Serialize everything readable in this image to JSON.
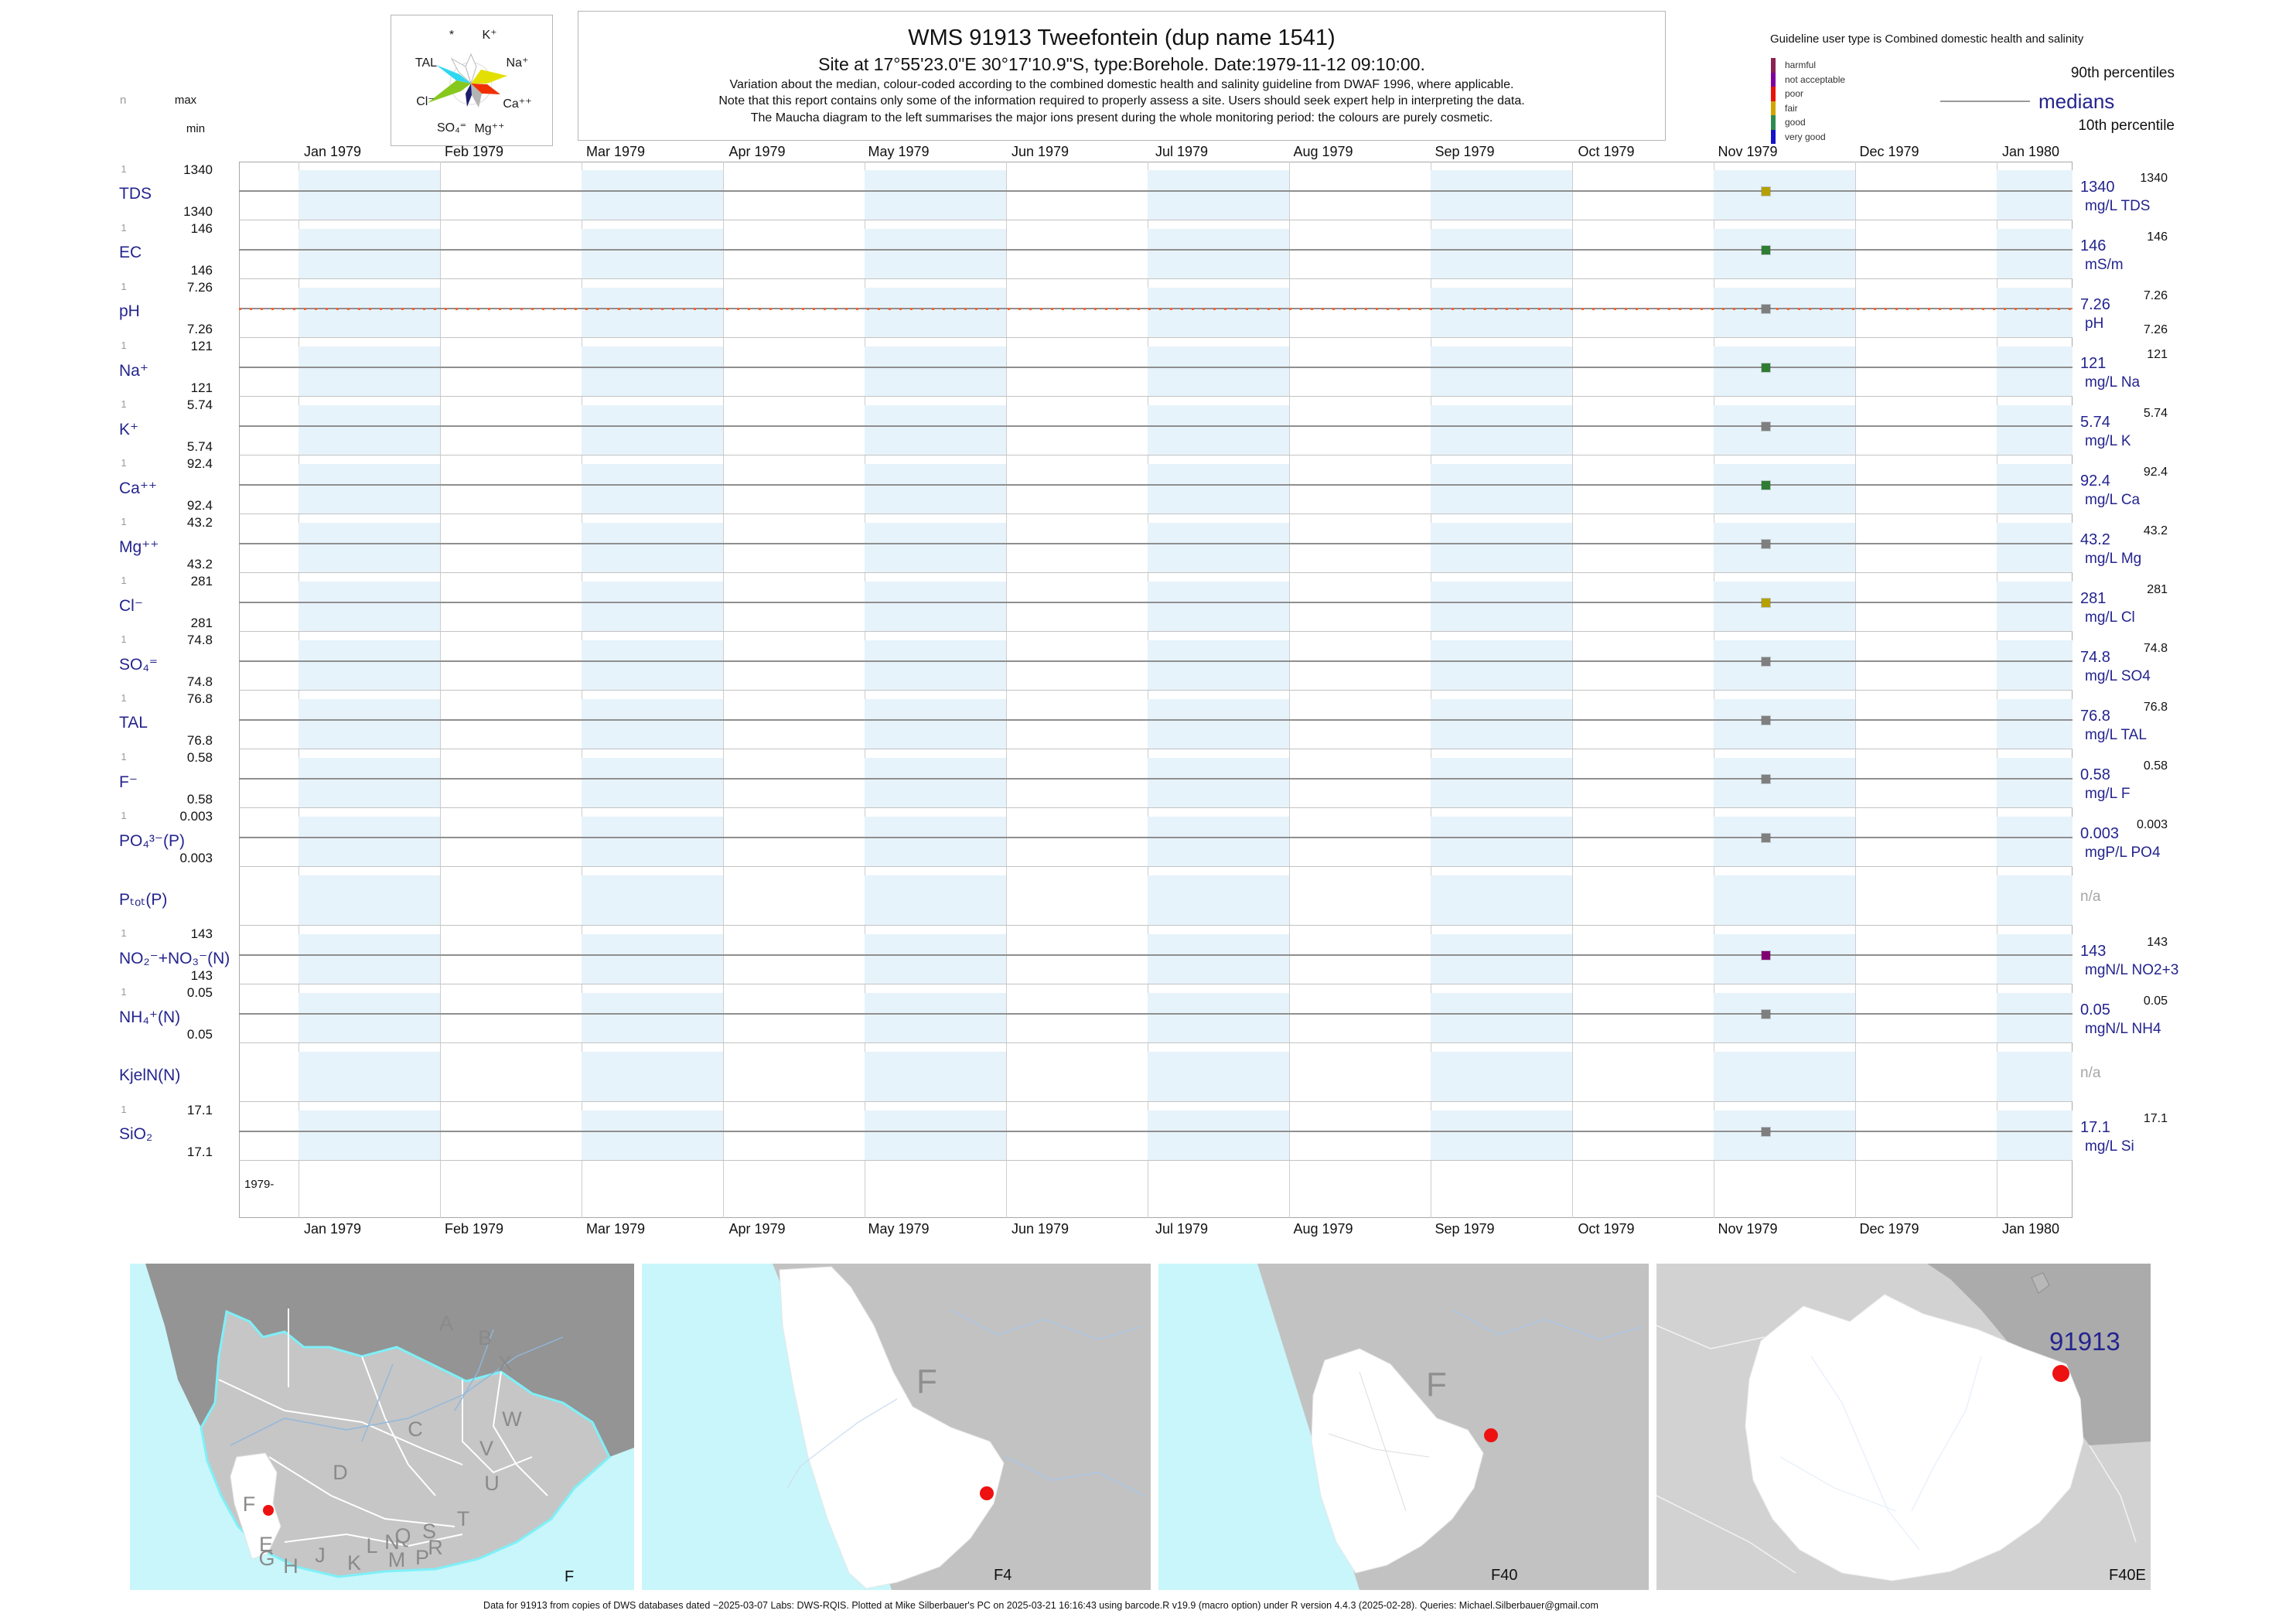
{
  "colors": {
    "accent_navy": "#24248f",
    "cell_blue": "#e7f3fb",
    "grid_gray": "#c3c3c3",
    "median_line_gray": "#8f8f8f",
    "dot_gray": "#7f7f7f",
    "dot_green": "#2e7d32",
    "dot_olive": "#b5a000",
    "dot_purple": "#800070",
    "ph_guideline_orange": "#f86432",
    "map_ocean_cyan": "#c8f6fa",
    "map_land_gray": "#c6c6c6",
    "map_neighbor_gray": "#949494",
    "site_marker_red": "#ee1111"
  },
  "stats_header": {
    "n": "n",
    "max": "max",
    "min": "min"
  },
  "maucha_legend": {
    "labels": [
      "*",
      "K⁺",
      "TAL",
      "Na⁺",
      "Cl⁻",
      "Ca⁺⁺",
      "SO₄⁼",
      "Mg⁺⁺"
    ]
  },
  "title_block": {
    "title": "WMS 91913  Tweefontein (dup name 1541)",
    "subtitle": "Site at 17°55'23.0\"E 30°17'10.9\"S, type:Borehole. Date:1979-11-12 09:10:00.",
    "notes": [
      "Variation about the median,  colour-coded according to the combined domestic health and salinity guideline from DWAF 1996, where applicable.",
      "Note that this report contains only some of the information required to properly assess a site. Users should seek expert help in interpreting the data.",
      "The Maucha diagram to the left summarises the major ions present during the whole monitoring period: the colours are purely cosmetic."
    ]
  },
  "guideline_legend": {
    "title": "Guideline user type is Combined domestic health and salinity",
    "classes": [
      {
        "label": "harmful",
        "color": "#8b2252"
      },
      {
        "label": "not acceptable",
        "color": "#8000a0"
      },
      {
        "label": "poor",
        "color": "#e81309"
      },
      {
        "label": "fair",
        "color": "#d1a500"
      },
      {
        "label": "good",
        "color": "#2e8b50"
      },
      {
        "label": "very good",
        "color": "#1414c8"
      }
    ],
    "p90_label": "90th percentiles",
    "median_label": "medians",
    "p10_label": "10th percentile"
  },
  "chart_data": {
    "type": "scatter",
    "title": "WMS 91913 Tweefontein (dup name 1541)",
    "sample_datetime": "1979-11-12 09:10:00",
    "x_axis": {
      "month_labels": [
        "Jan 1979",
        "Feb 1979",
        "Mar 1979",
        "Apr 1979",
        "May 1979",
        "Jun 1979",
        "Jul 1979",
        "Aug 1979",
        "Sep 1979",
        "Oct 1979",
        "Nov 1979",
        "Dec 1979",
        "Jan 1980"
      ],
      "origin_label": "1979-"
    },
    "rows": [
      {
        "param": "TDS",
        "n": 1,
        "max": 1340,
        "min": 1340,
        "median": 1340,
        "p90": 1340,
        "unit": "mg/L TDS",
        "dot_color": "#b5a000"
      },
      {
        "param": "EC",
        "n": 1,
        "max": 146,
        "min": 146,
        "median": 146,
        "p90": 146,
        "unit": "mS/m",
        "dot_color": "#2e7d32"
      },
      {
        "param": "pH",
        "n": 1,
        "max": 7.26,
        "min": 7.26,
        "median": 7.26,
        "p90": 7.26,
        "p10": 7.26,
        "unit": "pH",
        "dot_color": "#7f7f7f",
        "guideline_line": true
      },
      {
        "param": "Na⁺",
        "n": 1,
        "max": 121,
        "min": 121,
        "median": 121,
        "p90": 121,
        "unit": "mg/L Na",
        "dot_color": "#2e7d32"
      },
      {
        "param": "K⁺",
        "n": 1,
        "max": 5.74,
        "min": 5.74,
        "median": 5.74,
        "p90": 5.74,
        "unit": "mg/L K",
        "dot_color": "#7f7f7f"
      },
      {
        "param": "Ca⁺⁺",
        "n": 1,
        "max": 92.4,
        "min": 92.4,
        "median": 92.4,
        "p90": 92.4,
        "unit": "mg/L Ca",
        "dot_color": "#2e7d32"
      },
      {
        "param": "Mg⁺⁺",
        "n": 1,
        "max": 43.2,
        "min": 43.2,
        "median": 43.2,
        "p90": 43.2,
        "unit": "mg/L Mg",
        "dot_color": "#7f7f7f"
      },
      {
        "param": "Cl⁻",
        "n": 1,
        "max": 281,
        "min": 281,
        "median": 281,
        "p90": 281,
        "unit": "mg/L Cl",
        "dot_color": "#b5a000"
      },
      {
        "param": "SO₄⁼",
        "n": 1,
        "max": 74.8,
        "min": 74.8,
        "median": 74.8,
        "p90": 74.8,
        "unit": "mg/L SO4",
        "dot_color": "#7f7f7f"
      },
      {
        "param": "TAL",
        "n": 1,
        "max": 76.8,
        "min": 76.8,
        "median": 76.8,
        "p90": 76.8,
        "unit": "mg/L TAL",
        "dot_color": "#7f7f7f"
      },
      {
        "param": "F⁻",
        "n": 1,
        "max": 0.58,
        "min": 0.58,
        "median": 0.58,
        "p90": 0.58,
        "unit": "mg/L F",
        "dot_color": "#7f7f7f"
      },
      {
        "param": "PO₄³⁻(P)",
        "n": 1,
        "max": 0.003,
        "min": 0.003,
        "median": 0.003,
        "p90": 0.003,
        "unit": "mgP/L PO4",
        "dot_color": "#7f7f7f"
      },
      {
        "param": "Pₜₒₜ(P)",
        "no_data": "n/a"
      },
      {
        "param": "NO₂⁻+NO₃⁻(N)",
        "n": 1,
        "max": 143,
        "min": 143,
        "median": 143,
        "p90": 143,
        "unit": "mgN/L NO2+3",
        "dot_color": "#800070"
      },
      {
        "param": "NH₄⁺(N)",
        "n": 1,
        "max": 0.05,
        "min": 0.05,
        "median": 0.05,
        "p90": 0.05,
        "unit": "mgN/L NH4",
        "dot_color": "#7f7f7f"
      },
      {
        "param": "KjelN(N)",
        "no_data": "n/a"
      },
      {
        "param": "SiO₂",
        "n": 1,
        "max": 17.1,
        "min": 17.1,
        "median": 17.1,
        "p90": 17.1,
        "unit": "mg/L Si",
        "dot_color": "#7f7f7f"
      }
    ]
  },
  "maps": {
    "panels": [
      {
        "label": "F",
        "region_letters": [
          "A",
          "B",
          "X",
          "C",
          "W",
          "D",
          "V",
          "U",
          "T",
          "E",
          "Q",
          "S",
          "R",
          "L",
          "N",
          "P",
          "M",
          "K",
          "J",
          "H",
          "G",
          "F"
        ]
      },
      {
        "label": "F4",
        "region_letter": "F"
      },
      {
        "label": "F40",
        "region_letter": "F"
      },
      {
        "label": "F40E",
        "station": "91913"
      }
    ]
  },
  "footer": {
    "text": "Data for 91913 from copies of DWS databases dated ~2025-03-07 Labs: DWS-RQIS. Plotted at Mike Silberbauer's PC on 2025-03-21 16:16:43 using barcode.R v19.9 (macro option) under R version 4.4.3 (2025-02-28). Queries: Michael.Silberbauer@gmail.com"
  }
}
